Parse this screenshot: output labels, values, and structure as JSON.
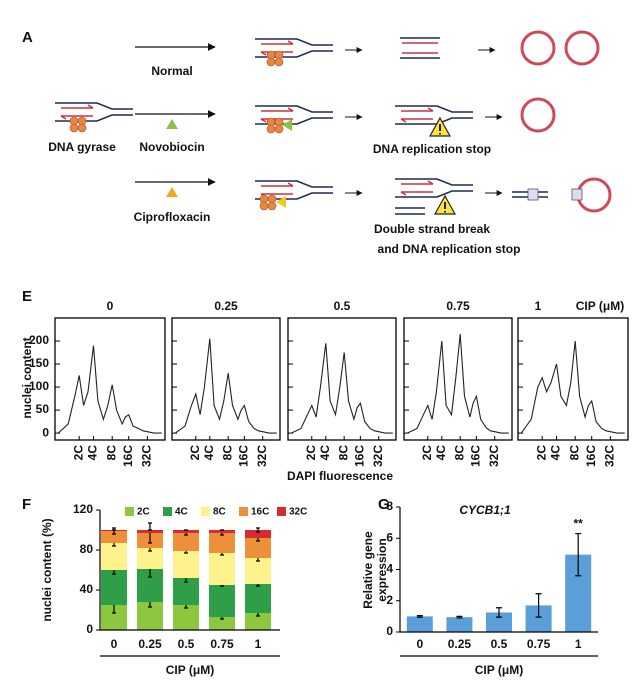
{
  "panels": [
    "A",
    "E",
    "F",
    "G"
  ],
  "diagram": {
    "normal": "Normal",
    "gyrase": "DNA gyrase",
    "novobiocin": "Novobiocin",
    "stop": "DNA replication stop",
    "ciprofloxacin": "Ciprofloxacin",
    "break_1": "Double strand break",
    "break_2": "and DNA replication stop"
  },
  "panel_E": {
    "ylabel": "nuclei content",
    "xlabel": "DAPI fluorescence",
    "unit": "CIP (μM)"
  },
  "chart_data": [
    {
      "type": "line",
      "title": "0",
      "color": "#222",
      "x": [
        3,
        12,
        18,
        22,
        26,
        30,
        35,
        39,
        44,
        48,
        52,
        56,
        61,
        64,
        67,
        71,
        76,
        80,
        84,
        90,
        97
      ],
      "values": [
        0,
        20,
        80,
        125,
        60,
        90,
        190,
        70,
        30,
        60,
        105,
        50,
        20,
        35,
        40,
        15,
        10,
        5,
        3,
        0,
        0
      ],
      "xlim": [
        0,
        100
      ],
      "ylim": [
        -15,
        250
      ],
      "yticks": [
        0,
        50,
        100,
        150,
        200
      ],
      "xticks": [
        {
          "value": 22,
          "label": "2C"
        },
        {
          "value": 35,
          "label": "4C"
        },
        {
          "value": 52,
          "label": "8C"
        },
        {
          "value": 67,
          "label": "16C"
        },
        {
          "value": 84,
          "label": "32C"
        }
      ]
    },
    {
      "type": "line",
      "title": "0.25",
      "color": "#222",
      "x": [
        3,
        12,
        18,
        22,
        26,
        30,
        35,
        39,
        44,
        48,
        52,
        56,
        61,
        64,
        67,
        71,
        76,
        80,
        84,
        90,
        97
      ],
      "values": [
        0,
        15,
        60,
        85,
        40,
        100,
        205,
        60,
        30,
        70,
        130,
        60,
        30,
        50,
        60,
        25,
        10,
        5,
        3,
        0,
        0
      ],
      "xlim": [
        0,
        100
      ],
      "ylim": [
        -15,
        250
      ],
      "yticks": [
        0,
        50,
        100,
        150,
        200
      ],
      "xticks": [
        {
          "value": 22,
          "label": "2C"
        },
        {
          "value": 35,
          "label": "4C"
        },
        {
          "value": 52,
          "label": "8C"
        },
        {
          "value": 67,
          "label": "16C"
        },
        {
          "value": 84,
          "label": "32C"
        }
      ]
    },
    {
      "type": "line",
      "title": "0.5",
      "color": "#222",
      "x": [
        3,
        12,
        18,
        22,
        26,
        30,
        35,
        39,
        44,
        48,
        52,
        56,
        61,
        64,
        67,
        71,
        76,
        80,
        84,
        90,
        97
      ],
      "values": [
        0,
        10,
        40,
        60,
        35,
        100,
        195,
        70,
        40,
        100,
        175,
        70,
        30,
        55,
        65,
        25,
        10,
        5,
        3,
        0,
        0
      ],
      "xlim": [
        0,
        100
      ],
      "ylim": [
        -15,
        250
      ],
      "yticks": [
        0,
        50,
        100,
        150,
        200
      ],
      "xticks": [
        {
          "value": 22,
          "label": "2C"
        },
        {
          "value": 35,
          "label": "4C"
        },
        {
          "value": 52,
          "label": "8C"
        },
        {
          "value": 67,
          "label": "16C"
        },
        {
          "value": 84,
          "label": "32C"
        }
      ]
    },
    {
      "type": "line",
      "title": "0.75",
      "color": "#222",
      "x": [
        3,
        12,
        18,
        22,
        26,
        30,
        35,
        39,
        44,
        48,
        52,
        56,
        61,
        64,
        67,
        71,
        76,
        80,
        84,
        90,
        97
      ],
      "values": [
        0,
        10,
        40,
        60,
        30,
        90,
        200,
        60,
        40,
        120,
        215,
        80,
        35,
        65,
        80,
        30,
        12,
        5,
        3,
        0,
        0
      ],
      "xlim": [
        0,
        100
      ],
      "ylim": [
        -15,
        250
      ],
      "yticks": [
        0,
        50,
        100,
        150,
        200
      ],
      "xticks": [
        {
          "value": 22,
          "label": "2C"
        },
        {
          "value": 35,
          "label": "4C"
        },
        {
          "value": 52,
          "label": "8C"
        },
        {
          "value": 67,
          "label": "16C"
        },
        {
          "value": 84,
          "label": "32C"
        }
      ]
    },
    {
      "type": "line",
      "title": "1",
      "color": "#222",
      "x": [
        3,
        12,
        18,
        22,
        26,
        30,
        35,
        39,
        44,
        48,
        52,
        56,
        61,
        64,
        67,
        71,
        76,
        80,
        84,
        90,
        97
      ],
      "values": [
        0,
        30,
        100,
        120,
        90,
        110,
        150,
        80,
        60,
        110,
        200,
        80,
        35,
        60,
        70,
        25,
        10,
        5,
        3,
        0,
        0
      ],
      "xlim": [
        0,
        100
      ],
      "ylim": [
        -15,
        250
      ],
      "yticks": [
        0,
        50,
        100,
        150,
        200
      ],
      "xticks": [
        {
          "value": 22,
          "label": "2C"
        },
        {
          "value": 35,
          "label": "4C"
        },
        {
          "value": 52,
          "label": "8C"
        },
        {
          "value": 67,
          "label": "16C"
        },
        {
          "value": 84,
          "label": "32C"
        }
      ]
    },
    {
      "type": "stacked_bar",
      "ylabel": "nuclei content (%)",
      "xlabel": "CIP (μM)",
      "categories": [
        "0",
        "0.25",
        "0.5",
        "0.75",
        "1"
      ],
      "ylim": [
        0,
        120
      ],
      "yticks": [
        0,
        40,
        80,
        120
      ],
      "series": [
        {
          "name": "2C",
          "color": "#8dc63f",
          "values": [
            25,
            28,
            25,
            13,
            17
          ],
          "errors": [
            8,
            5,
            3,
            2,
            3
          ]
        },
        {
          "name": "4C",
          "color": "#2e9e48",
          "values": [
            35,
            33,
            27,
            32,
            29
          ],
          "errors": [
            4,
            8,
            4,
            1,
            2
          ]
        },
        {
          "name": "8C",
          "color": "#fdf28b",
          "values": [
            27,
            21,
            27,
            32,
            26
          ],
          "errors": [
            3,
            3,
            2,
            2,
            3
          ]
        },
        {
          "name": "16C",
          "color": "#ee8f3a",
          "values": [
            12,
            15,
            18,
            20,
            20
          ],
          "errors": [
            3,
            10,
            2,
            2,
            3
          ]
        },
        {
          "name": "32C",
          "color": "#d52b33",
          "values": [
            1,
            3,
            3,
            3,
            8
          ],
          "errors": [
            0,
            0,
            0,
            0,
            2
          ]
        }
      ]
    },
    {
      "type": "bar",
      "title": "CYCB1;1",
      "ylabel": "Relative gene expression",
      "xlabel": "CIP (μM)",
      "annotation": "**",
      "color": "#5a9fd8",
      "categories": [
        "0",
        "0.25",
        "0.5",
        "0.75",
        "1"
      ],
      "values": [
        1,
        0.95,
        1.25,
        1.7,
        4.95
      ],
      "errors": [
        0.05,
        0.05,
        0.3,
        0.75,
        1.35
      ],
      "ylim": [
        0,
        8
      ],
      "yticks": [
        0,
        2,
        4,
        6,
        8
      ]
    }
  ]
}
